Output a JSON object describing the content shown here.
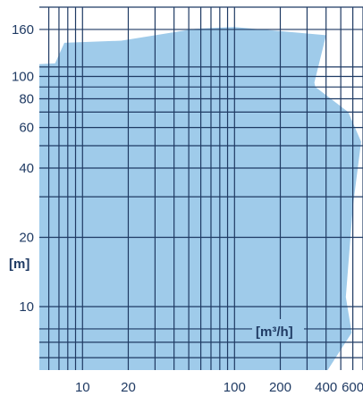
{
  "chart_data": {
    "type": "area",
    "title": "",
    "xlabel": "[m³/h]",
    "ylabel": "[m]",
    "x_scale": "log",
    "y_scale": "log",
    "xlim": [
      5.2,
      700
    ],
    "ylim": [
      5.3,
      200
    ],
    "grid": true,
    "x_ticks": [
      10,
      20,
      100,
      200,
      400,
      600
    ],
    "x_tick_labels": [
      "10",
      "20",
      "100",
      "200",
      "400",
      "600"
    ],
    "y_ticks": [
      10,
      20,
      40,
      60,
      80,
      100,
      160
    ],
    "y_tick_labels": [
      "10",
      "20",
      "40",
      "60",
      "80",
      "100",
      "160"
    ],
    "x_gridlines": [
      6,
      7,
      8,
      9,
      10,
      20,
      30,
      40,
      50,
      60,
      70,
      80,
      90,
      100,
      200,
      300,
      400,
      500,
      600,
      700
    ],
    "y_gridlines": [
      6,
      7,
      8,
      10,
      20,
      30,
      40,
      50,
      60,
      70,
      80,
      90,
      100,
      110,
      160,
      200
    ],
    "series": [
      {
        "fill_color": "#9fcbea",
        "points": [
          [
            5.2,
            113
          ],
          [
            6.6,
            114
          ],
          [
            7.6,
            140
          ],
          [
            18,
            143
          ],
          [
            55,
            161
          ],
          [
            100,
            164
          ],
          [
            400,
            151
          ],
          [
            335,
            94
          ],
          [
            340,
            90
          ],
          [
            560,
            70
          ],
          [
            680,
            52
          ],
          [
            600,
            27
          ],
          [
            540,
            11
          ],
          [
            590,
            7.7
          ],
          [
            410,
            5.3
          ],
          [
            5.2,
            5.3
          ]
        ]
      }
    ],
    "colors": {
      "fill": "#9fcbea",
      "grid": "#1f3a63",
      "text": "#1f3a63",
      "unit_box": "#9fcbea"
    }
  }
}
